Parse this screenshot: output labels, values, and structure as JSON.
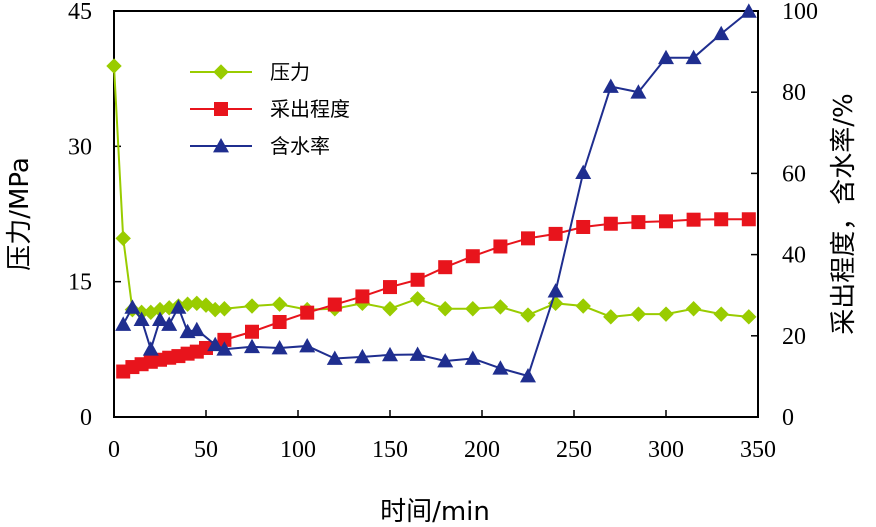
{
  "chart_data": {
    "type": "line",
    "xlabel": "时间/min",
    "ylabel_left": "压力/MPa",
    "ylabel_right": "采出程度，含水率/%",
    "xlim": [
      0,
      350
    ],
    "ylim_left": [
      0,
      45
    ],
    "ylim_right": [
      0,
      100
    ],
    "x_ticks": [
      "0",
      "50",
      "100",
      "150",
      "200",
      "250",
      "300",
      "350"
    ],
    "y_left_ticks": [
      "0",
      "15",
      "30",
      "45"
    ],
    "y_right_ticks": [
      "0",
      "20",
      "40",
      "60",
      "80",
      "100"
    ],
    "grid": false,
    "legend_position": "top-left",
    "series": [
      {
        "name": "压力",
        "axis": "left",
        "color": "#99cc00",
        "marker": "diamond",
        "x": [
          0,
          5,
          10,
          15,
          20,
          25,
          30,
          35,
          40,
          45,
          50,
          55,
          60,
          75,
          90,
          105,
          120,
          135,
          150,
          165,
          180,
          195,
          210,
          225,
          240,
          255,
          270,
          285,
          300,
          315,
          330,
          345
        ],
        "y": [
          38.9,
          19.8,
          11.9,
          11.6,
          11.6,
          11.9,
          12.1,
          12.3,
          12.5,
          12.6,
          12.4,
          11.9,
          12.0,
          12.3,
          12.5,
          11.9,
          12.0,
          12.6,
          12.0,
          13.1,
          12.0,
          12.0,
          12.2,
          11.3,
          12.6,
          12.3,
          11.1,
          11.4,
          11.4,
          12.0,
          11.4,
          11.1
        ]
      },
      {
        "name": "采出程度",
        "axis": "right",
        "color": "#e8141c",
        "marker": "square",
        "x": [
          5,
          10,
          15,
          20,
          25,
          30,
          35,
          40,
          45,
          50,
          60,
          75,
          90,
          105,
          120,
          135,
          150,
          165,
          180,
          195,
          210,
          225,
          240,
          255,
          270,
          285,
          300,
          315,
          330,
          345
        ],
        "y": [
          11.2,
          12.3,
          13.0,
          13.6,
          14.1,
          14.6,
          15.0,
          15.6,
          16.1,
          17.0,
          19.0,
          21.0,
          23.4,
          25.7,
          27.7,
          29.7,
          32.0,
          33.8,
          36.9,
          39.6,
          42.0,
          44.0,
          45.1,
          46.8,
          47.6,
          48.0,
          48.2,
          48.6,
          48.7,
          48.7
        ]
      },
      {
        "name": "含水率",
        "axis": "right",
        "color": "#1f2e8f",
        "marker": "triangle",
        "x": [
          5,
          10,
          15,
          20,
          25,
          30,
          35,
          40,
          45,
          55,
          60,
          75,
          90,
          105,
          120,
          135,
          150,
          165,
          180,
          195,
          210,
          225,
          240,
          255,
          270,
          285,
          300,
          315,
          330,
          345
        ],
        "y": [
          22.8,
          27.0,
          24.0,
          16.7,
          24.0,
          22.8,
          27.0,
          21.0,
          21.5,
          17.8,
          16.7,
          17.3,
          17.0,
          17.5,
          14.4,
          14.8,
          15.3,
          15.4,
          13.8,
          14.4,
          12.0,
          10.1,
          31.0,
          60.2,
          81.4,
          80.0,
          88.5,
          88.5,
          94.4,
          99.9
        ]
      }
    ]
  }
}
